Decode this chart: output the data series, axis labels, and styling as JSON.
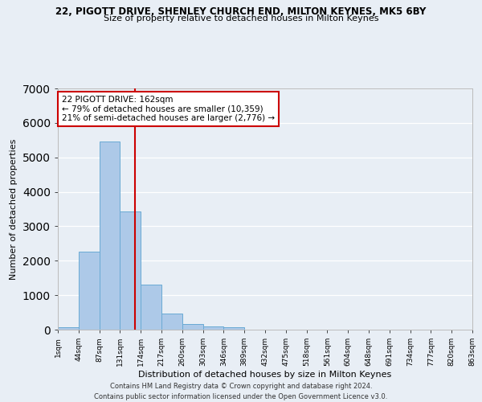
{
  "title1": "22, PIGOTT DRIVE, SHENLEY CHURCH END, MILTON KEYNES, MK5 6BY",
  "title2": "Size of property relative to detached houses in Milton Keynes",
  "xlabel": "Distribution of detached houses by size in Milton Keynes",
  "ylabel": "Number of detached properties",
  "bar_values": [
    75,
    2270,
    5470,
    3440,
    1310,
    470,
    155,
    90,
    65,
    0,
    0,
    0,
    0,
    0,
    0,
    0,
    0,
    0,
    0,
    0
  ],
  "bin_labels": [
    "1sqm",
    "44sqm",
    "87sqm",
    "131sqm",
    "174sqm",
    "217sqm",
    "260sqm",
    "303sqm",
    "346sqm",
    "389sqm",
    "432sqm",
    "475sqm",
    "518sqm",
    "561sqm",
    "604sqm",
    "648sqm",
    "691sqm",
    "734sqm",
    "777sqm",
    "820sqm",
    "863sqm"
  ],
  "bar_color": "#adc9e8",
  "bar_edge_color": "#6aaad4",
  "vline_color": "#cc0000",
  "annotation_box_edge": "#cc0000",
  "ylim": [
    0,
    7000
  ],
  "footer": "Contains HM Land Registry data © Crown copyright and database right 2024.\nContains public sector information licensed under the Open Government Licence v3.0.",
  "bg_color": "#e8eef5",
  "grid_color": "#ffffff",
  "pct_smaller": 79,
  "n_smaller": "10,359",
  "pct_larger": 21,
  "n_larger": "2,776"
}
